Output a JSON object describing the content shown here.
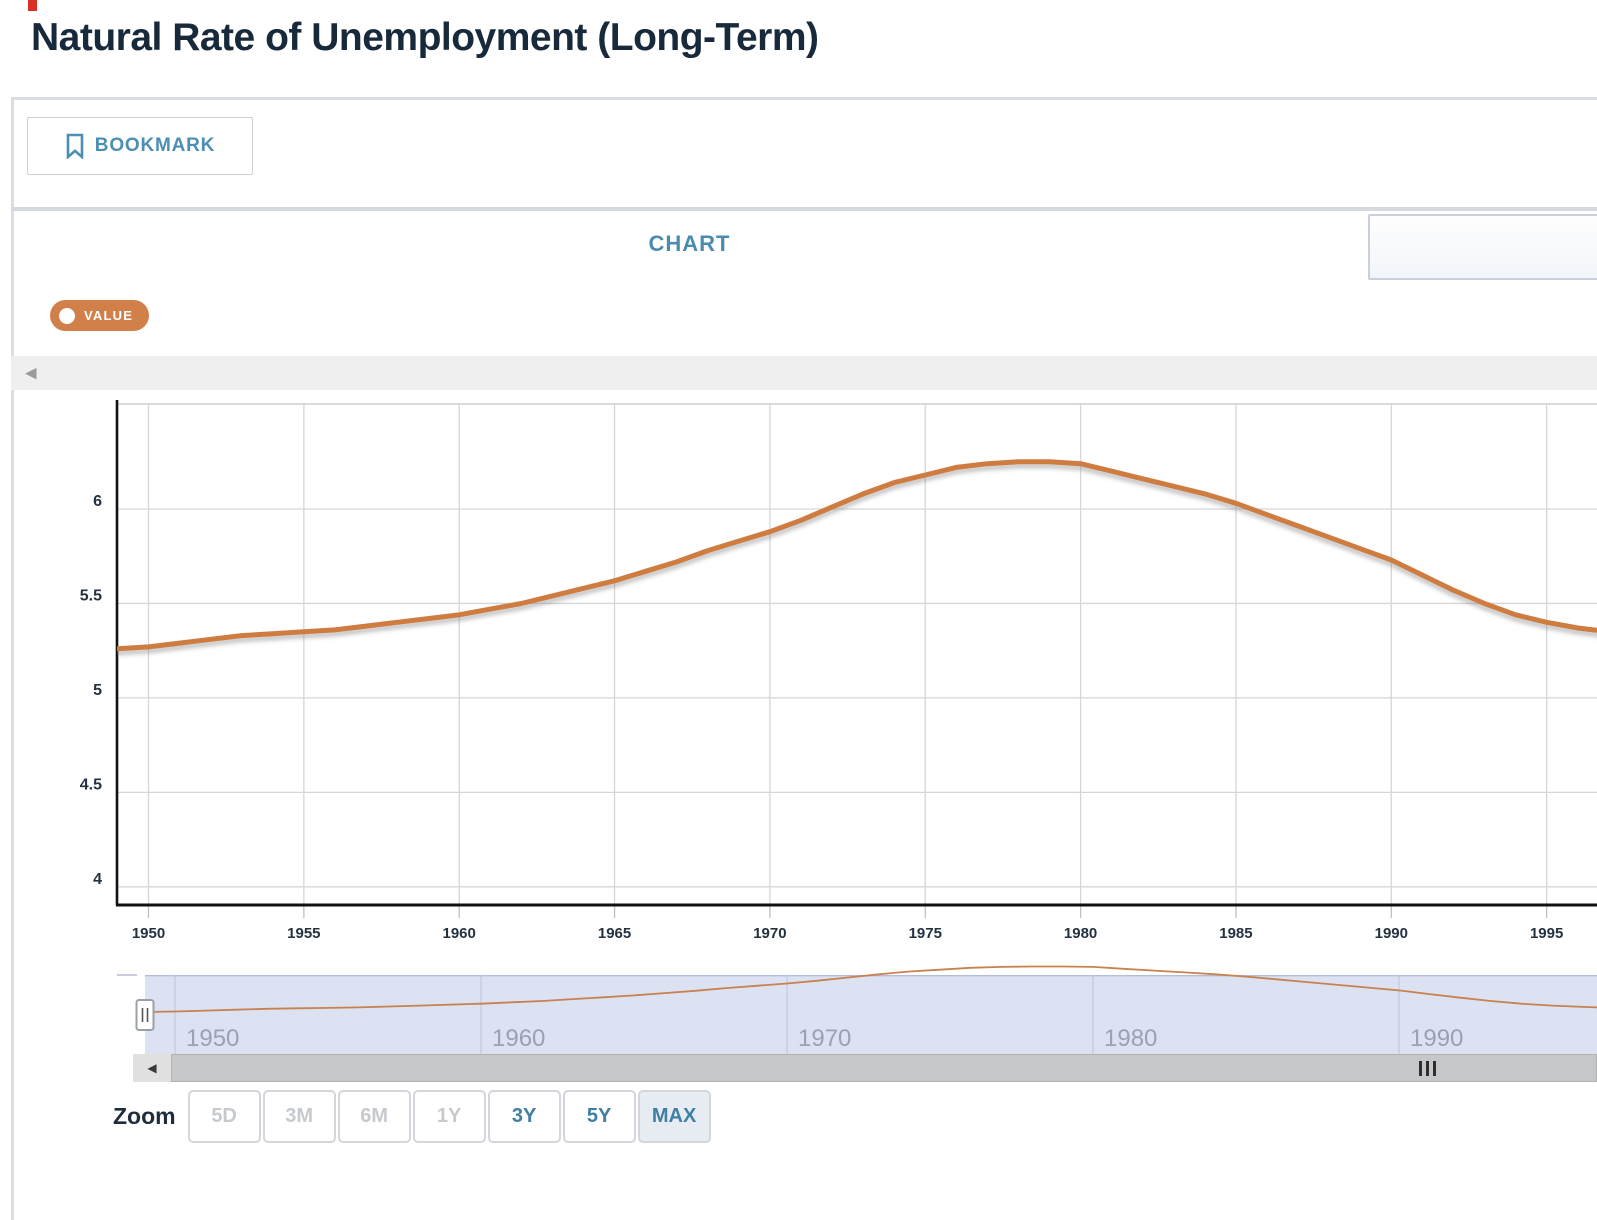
{
  "page": {
    "title": "Natural Rate of Unemployment (Long-Term)"
  },
  "toolbar": {
    "bookmark_label": "BOOKMARK"
  },
  "tabs": {
    "chart_label": "CHART"
  },
  "series_toggle": {
    "label": "VALUE",
    "color": "#d2804a"
  },
  "zoom_bar": {
    "label": "Zoom",
    "buttons": [
      {
        "label": "5D",
        "state": "disabled"
      },
      {
        "label": "3M",
        "state": "disabled"
      },
      {
        "label": "6M",
        "state": "disabled"
      },
      {
        "label": "1Y",
        "state": "disabled"
      },
      {
        "label": "3Y",
        "state": "enabled"
      },
      {
        "label": "5Y",
        "state": "enabled"
      },
      {
        "label": "MAX",
        "state": "selected"
      }
    ]
  },
  "chart_data": {
    "type": "line",
    "title": "Natural Rate of Unemployment (Long-Term)",
    "series_name": "VALUE",
    "line_color": "#cf7b41",
    "grid": true,
    "xlim": [
      1949,
      1996.7
    ],
    "ylim": [
      3.95,
      6.55
    ],
    "x_ticks": [
      1950,
      1955,
      1960,
      1965,
      1970,
      1975,
      1980,
      1985,
      1990,
      1995
    ],
    "y_ticks": [
      4,
      4.5,
      5,
      5.5,
      6
    ],
    "navigator_ticks": [
      1950,
      1960,
      1970,
      1980,
      1990
    ],
    "x": [
      1949,
      1950,
      1951,
      1952,
      1953,
      1954,
      1955,
      1956,
      1957,
      1958,
      1959,
      1960,
      1961,
      1962,
      1963,
      1964,
      1965,
      1966,
      1967,
      1968,
      1969,
      1970,
      1971,
      1972,
      1973,
      1974,
      1975,
      1976,
      1977,
      1978,
      1979,
      1980,
      1981,
      1982,
      1983,
      1984,
      1985,
      1986,
      1987,
      1988,
      1989,
      1990,
      1991,
      1992,
      1993,
      1994,
      1995,
      1996,
      1997
    ],
    "values": [
      5.26,
      5.27,
      5.29,
      5.31,
      5.33,
      5.34,
      5.35,
      5.36,
      5.38,
      5.4,
      5.42,
      5.44,
      5.47,
      5.5,
      5.54,
      5.58,
      5.62,
      5.67,
      5.72,
      5.78,
      5.83,
      5.88,
      5.94,
      6.01,
      6.08,
      6.14,
      6.18,
      6.22,
      6.24,
      6.25,
      6.25,
      6.24,
      6.2,
      6.16,
      6.12,
      6.08,
      6.03,
      5.97,
      5.91,
      5.85,
      5.79,
      5.73,
      5.65,
      5.57,
      5.5,
      5.44,
      5.4,
      5.37,
      5.35
    ]
  }
}
